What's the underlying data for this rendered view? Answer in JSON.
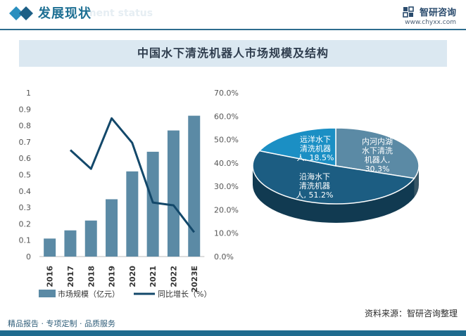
{
  "header": {
    "title": "发展现状",
    "watermark": "ment status",
    "brand_name": "智研咨询",
    "brand_url": "www.chyxx.com"
  },
  "chart_data": [
    {
      "type": "bar",
      "title": "中国水下清洗机器人市场规模及结构",
      "categories": [
        "2016",
        "2017",
        "2018",
        "2019",
        "2020",
        "2021",
        "2022",
        "2023E"
      ],
      "series": [
        {
          "name": "市场规模（亿元）",
          "type": "bar",
          "axis": "left",
          "values": [
            0.11,
            0.16,
            0.22,
            0.35,
            0.52,
            0.64,
            0.77,
            0.86
          ]
        },
        {
          "name": "同比增长（%）",
          "type": "line",
          "axis": "right",
          "values": [
            null,
            45.5,
            37.5,
            59.1,
            48.6,
            23.1,
            21.9,
            10.4
          ]
        }
      ],
      "y_left": {
        "min": 0,
        "max": 1,
        "ticks": [
          "0",
          "0.1",
          "0.2",
          "0.3",
          "0.4",
          "0.5",
          "0.6",
          "0.7",
          "0.8",
          "0.9",
          "1"
        ]
      },
      "y_right": {
        "min": 0,
        "max": 70,
        "ticks": [
          "0.0%",
          "10.0%",
          "20.0%",
          "30.0%",
          "40.0%",
          "50.0%",
          "60.0%",
          "70.0%"
        ]
      },
      "grid": false,
      "legend": "bottom",
      "colors": {
        "bar": "#5b8aa5",
        "line": "#13486a"
      }
    },
    {
      "type": "pie",
      "style": "3d",
      "slices": [
        {
          "name": "内河内湖水下清洗机器人",
          "value": 30.3,
          "label": [
            "内河内湖",
            "水下清洗",
            "机器人,",
            "30.3%"
          ],
          "color": "#5b8aa5"
        },
        {
          "name": "沿海水下清洗机器人",
          "value": 51.2,
          "label": [
            "沿海水下",
            "清洗机器",
            "人, 51.2%"
          ],
          "color": "#1c5d82"
        },
        {
          "name": "远洋水下清洗机器人",
          "value": 18.5,
          "label": [
            "远洋水下",
            "清洗机器",
            "人, 18.5%"
          ],
          "color": "#1b8fc4"
        }
      ]
    }
  ],
  "footer": {
    "left": "精品报告 · 专项定制 · 品质服务",
    "source": "资料来源：智研咨询整理"
  }
}
